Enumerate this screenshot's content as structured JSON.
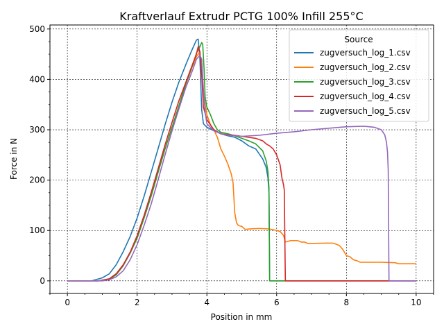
{
  "chart_data": {
    "type": "line",
    "title": "Kraftverlauf Extrudr PCTG 100% Infill 255°C",
    "xlabel": "Position in mm",
    "ylabel": "Force in N",
    "xlim": [
      -0.5,
      10.5
    ],
    "ylim": [
      -25,
      508
    ],
    "xticks": [
      0,
      2,
      4,
      6,
      8,
      10
    ],
    "yticks": [
      0,
      100,
      200,
      300,
      400,
      500
    ],
    "grid": true,
    "legend": {
      "title": "Source",
      "position": "top-right"
    },
    "series": [
      {
        "name": "zugversuch_log_1.csv",
        "color": "#1f77b4",
        "points": [
          [
            0,
            0
          ],
          [
            0.7,
            0
          ],
          [
            1.0,
            6
          ],
          [
            1.2,
            14
          ],
          [
            1.4,
            32
          ],
          [
            1.6,
            58
          ],
          [
            1.8,
            88
          ],
          [
            2.0,
            125
          ],
          [
            2.2,
            168
          ],
          [
            2.4,
            215
          ],
          [
            2.6,
            262
          ],
          [
            2.8,
            310
          ],
          [
            3.0,
            355
          ],
          [
            3.2,
            395
          ],
          [
            3.4,
            430
          ],
          [
            3.55,
            455
          ],
          [
            3.7,
            478
          ],
          [
            3.75,
            480
          ],
          [
            3.8,
            440
          ],
          [
            3.85,
            340
          ],
          [
            3.9,
            312
          ],
          [
            4.0,
            305
          ],
          [
            4.2,
            298
          ],
          [
            4.4,
            292
          ],
          [
            4.6,
            288
          ],
          [
            4.8,
            285
          ],
          [
            5.0,
            278
          ],
          [
            5.2,
            268
          ],
          [
            5.4,
            262
          ],
          [
            5.6,
            242
          ],
          [
            5.7,
            225
          ],
          [
            5.75,
            205
          ],
          [
            5.78,
            175
          ],
          [
            5.8,
            0
          ],
          [
            10,
            0
          ]
        ]
      },
      {
        "name": "zugversuch_log_2.csv",
        "color": "#ff7f0e",
        "points": [
          [
            0,
            0
          ],
          [
            0.9,
            0
          ],
          [
            1.2,
            4
          ],
          [
            1.4,
            14
          ],
          [
            1.6,
            32
          ],
          [
            1.8,
            55
          ],
          [
            2.0,
            85
          ],
          [
            2.2,
            125
          ],
          [
            2.4,
            168
          ],
          [
            2.6,
            215
          ],
          [
            2.8,
            262
          ],
          [
            3.0,
            305
          ],
          [
            3.2,
            348
          ],
          [
            3.4,
            392
          ],
          [
            3.6,
            428
          ],
          [
            3.7,
            445
          ],
          [
            3.78,
            453
          ],
          [
            3.85,
            430
          ],
          [
            3.9,
            370
          ],
          [
            4.0,
            330
          ],
          [
            4.1,
            310
          ],
          [
            4.2,
            300
          ],
          [
            4.3,
            285
          ],
          [
            4.4,
            262
          ],
          [
            4.5,
            248
          ],
          [
            4.6,
            232
          ],
          [
            4.7,
            212
          ],
          [
            4.75,
            195
          ],
          [
            4.8,
            135
          ],
          [
            4.85,
            115
          ],
          [
            4.9,
            110
          ],
          [
            5.0,
            108
          ],
          [
            5.1,
            102
          ],
          [
            5.2,
            103
          ],
          [
            5.5,
            104
          ],
          [
            5.8,
            103
          ],
          [
            6.0,
            100
          ],
          [
            6.1,
            98
          ],
          [
            6.2,
            90
          ],
          [
            6.25,
            77
          ],
          [
            6.4,
            80
          ],
          [
            6.6,
            80
          ],
          [
            6.7,
            77
          ],
          [
            6.8,
            77
          ],
          [
            6.9,
            74
          ],
          [
            7.4,
            75
          ],
          [
            7.6,
            75
          ],
          [
            7.7,
            73
          ],
          [
            7.8,
            70
          ],
          [
            7.9,
            62
          ],
          [
            8.0,
            50
          ],
          [
            8.1,
            48
          ],
          [
            8.2,
            42
          ],
          [
            8.3,
            40
          ],
          [
            8.4,
            37
          ],
          [
            9.0,
            37
          ],
          [
            9.4,
            36
          ],
          [
            9.5,
            34
          ],
          [
            10,
            34
          ]
        ]
      },
      {
        "name": "zugversuch_log_3.csv",
        "color": "#2ca02c",
        "points": [
          [
            0,
            0
          ],
          [
            0.9,
            0
          ],
          [
            1.2,
            3
          ],
          [
            1.4,
            12
          ],
          [
            1.6,
            30
          ],
          [
            1.8,
            55
          ],
          [
            2.0,
            85
          ],
          [
            2.2,
            125
          ],
          [
            2.4,
            168
          ],
          [
            2.6,
            215
          ],
          [
            2.8,
            262
          ],
          [
            3.0,
            305
          ],
          [
            3.2,
            348
          ],
          [
            3.4,
            392
          ],
          [
            3.6,
            430
          ],
          [
            3.7,
            452
          ],
          [
            3.8,
            465
          ],
          [
            3.85,
            473
          ],
          [
            3.88,
            470
          ],
          [
            3.92,
            420
          ],
          [
            3.95,
            365
          ],
          [
            4.0,
            345
          ],
          [
            4.1,
            330
          ],
          [
            4.2,
            312
          ],
          [
            4.3,
            300
          ],
          [
            4.4,
            295
          ],
          [
            4.6,
            292
          ],
          [
            4.8,
            288
          ],
          [
            5.0,
            283
          ],
          [
            5.2,
            278
          ],
          [
            5.4,
            272
          ],
          [
            5.6,
            258
          ],
          [
            5.7,
            238
          ],
          [
            5.75,
            218
          ],
          [
            5.78,
            185
          ],
          [
            5.8,
            0
          ],
          [
            10,
            0
          ]
        ]
      },
      {
        "name": "zugversuch_log_4.csv",
        "color": "#d62728",
        "points": [
          [
            0,
            0
          ],
          [
            0.9,
            0
          ],
          [
            1.2,
            4
          ],
          [
            1.4,
            14
          ],
          [
            1.6,
            32
          ],
          [
            1.8,
            57
          ],
          [
            2.0,
            90
          ],
          [
            2.2,
            130
          ],
          [
            2.4,
            175
          ],
          [
            2.6,
            222
          ],
          [
            2.8,
            270
          ],
          [
            3.0,
            315
          ],
          [
            3.2,
            358
          ],
          [
            3.4,
            395
          ],
          [
            3.6,
            432
          ],
          [
            3.7,
            450
          ],
          [
            3.75,
            465
          ],
          [
            3.8,
            455
          ],
          [
            3.85,
            410
          ],
          [
            3.9,
            345
          ],
          [
            4.0,
            320
          ],
          [
            4.2,
            300
          ],
          [
            4.4,
            292
          ],
          [
            4.6,
            290
          ],
          [
            4.8,
            289
          ],
          [
            5.0,
            287
          ],
          [
            5.2,
            285
          ],
          [
            5.4,
            283
          ],
          [
            5.6,
            278
          ],
          [
            5.7,
            272
          ],
          [
            5.8,
            268
          ],
          [
            5.9,
            262
          ],
          [
            6.0,
            250
          ],
          [
            6.1,
            230
          ],
          [
            6.15,
            205
          ],
          [
            6.2,
            190
          ],
          [
            6.22,
            180
          ],
          [
            6.25,
            0
          ],
          [
            10,
            0
          ]
        ]
      },
      {
        "name": "zugversuch_log_5.csv",
        "color": "#9467bd",
        "points": [
          [
            0,
            0
          ],
          [
            1.0,
            0
          ],
          [
            1.2,
            2
          ],
          [
            1.4,
            8
          ],
          [
            1.6,
            20
          ],
          [
            1.8,
            42
          ],
          [
            2.0,
            72
          ],
          [
            2.2,
            110
          ],
          [
            2.4,
            152
          ],
          [
            2.6,
            200
          ],
          [
            2.8,
            250
          ],
          [
            3.0,
            298
          ],
          [
            3.2,
            342
          ],
          [
            3.4,
            385
          ],
          [
            3.6,
            420
          ],
          [
            3.7,
            440
          ],
          [
            3.8,
            448
          ],
          [
            3.85,
            440
          ],
          [
            3.9,
            380
          ],
          [
            3.95,
            335
          ],
          [
            4.0,
            312
          ],
          [
            4.2,
            298
          ],
          [
            4.5,
            290
          ],
          [
            5.0,
            287
          ],
          [
            5.5,
            289
          ],
          [
            6.0,
            293
          ],
          [
            6.5,
            296
          ],
          [
            7.0,
            300
          ],
          [
            7.5,
            303
          ],
          [
            8.0,
            306
          ],
          [
            8.5,
            307
          ],
          [
            8.8,
            305
          ],
          [
            9.0,
            300
          ],
          [
            9.1,
            290
          ],
          [
            9.15,
            275
          ],
          [
            9.18,
            255
          ],
          [
            9.2,
            220
          ],
          [
            9.22,
            0
          ],
          [
            10,
            0
          ]
        ]
      }
    ]
  }
}
